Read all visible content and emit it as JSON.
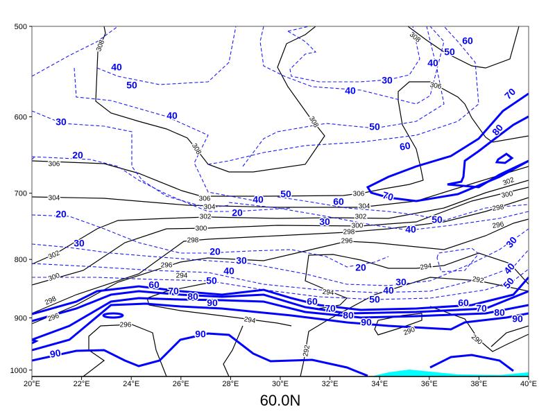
{
  "chart_data": {
    "type": "contour",
    "title": "60.0N",
    "xlabel": "",
    "ylabel": "",
    "x_range": [
      20,
      40
    ],
    "y_range": [
      500,
      1013
    ],
    "y_scale": "log",
    "y_reversed": true,
    "x_ticks": [
      "20°E",
      "22°E",
      "24°E",
      "26°E",
      "28°E",
      "30°E",
      "32°E",
      "34°E",
      "36°E",
      "38°E",
      "40°E"
    ],
    "y_ticks": [
      "500",
      "600",
      "700",
      "800",
      "900",
      "1000"
    ],
    "y_tick_values": [
      500,
      600,
      700,
      800,
      900,
      1000
    ],
    "series": [
      {
        "name": "potential temperature (black contours)",
        "levels": [
          290,
          292,
          294,
          296,
          298,
          300,
          302,
          304,
          306,
          308
        ]
      },
      {
        "name": "wind speed (blue contours, dashed < 60, thick solid >= 60)",
        "levels": [
          20,
          30,
          40,
          50,
          60,
          70,
          80,
          90
        ]
      }
    ],
    "shading": {
      "name": "terrain / below ground",
      "color": "#00ffff"
    },
    "labels": {
      "theta": [
        "308",
        "308",
        "306",
        "308",
        "308",
        "306",
        "304",
        "306",
        "304",
        "302",
        "300",
        "298",
        "306",
        "304",
        "302",
        "300",
        "298",
        "296",
        "302",
        "296",
        "300",
        "294",
        "298",
        "296",
        "296",
        "294",
        "294",
        "294",
        "292",
        "290",
        "290",
        "292",
        "302",
        "300",
        "298",
        "296"
      ],
      "wind": [
        "40",
        "50",
        "30",
        "40",
        "20",
        "20",
        "30",
        "40",
        "50",
        "60",
        "70",
        "30",
        "40",
        "50",
        "60",
        "40",
        "50",
        "60",
        "70",
        "80",
        "50",
        "40",
        "30",
        "20",
        "20",
        "30",
        "40",
        "50",
        "60",
        "70",
        "80",
        "90",
        "20",
        "30",
        "40",
        "50",
        "60",
        "70",
        "80",
        "90",
        "90",
        "90",
        "60",
        "70",
        "80",
        "90",
        "30",
        "40",
        "50"
      ]
    },
    "colors": {
      "theta": "#000000",
      "wind": "#0000ff",
      "terrain": "#00ffff"
    }
  }
}
